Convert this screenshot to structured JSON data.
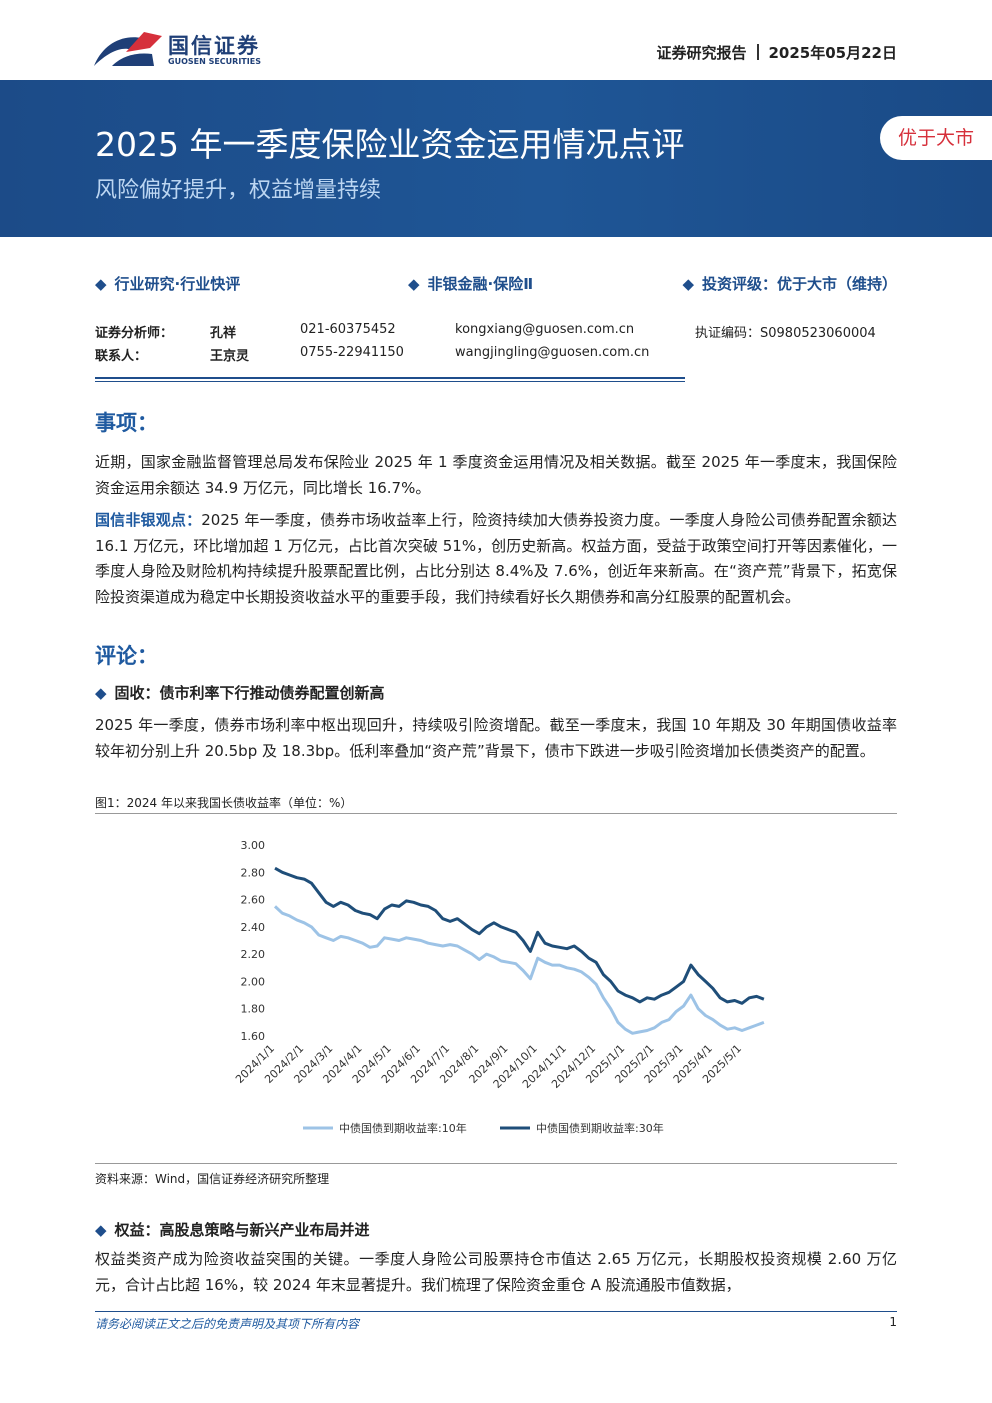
{
  "header": {
    "brand": "国信证券",
    "brand_en": "GUOSEN SECURITIES",
    "doc_type": "证券研究报告",
    "date": "2025年05月22日"
  },
  "banner": {
    "title": "2025 年一季度保险业资金运用情况点评",
    "subtitle": "风险偏好提升，权益增量持续",
    "rating": "优于大市"
  },
  "tags": [
    "行业研究·行业快评",
    "非银金融·保险Ⅱ",
    "投资评级：优于大市（维持）"
  ],
  "contacts": [
    {
      "role": "证券分析师：",
      "name": "孔祥",
      "phone": "021-60375452",
      "email": "kongxiang@guosen.com.cn",
      "cert": "执证编码：S0980523060004"
    },
    {
      "role": "联系人：",
      "name": "王京灵",
      "phone": "0755-22941150",
      "email": "wangjingling@guosen.com.cn"
    }
  ],
  "sections": [
    {
      "heading": "事项：",
      "lead": "国信非银观点：",
      "paragraphs": [
        "近期，国家金融监督管理总局发布保险业 2025 年 1 季度资金运用情况及相关数据。截至 2025 年一季度末，我国保险资金运用余额达 34.9 万亿元，同比增长 16.7%。",
        "2025 年一季度，债券市场收益率上行，险资持续加大债券投资力度。一季度人身险公司债券配置余额达 16.1 万亿元，环比增加超 1 万亿元，占比首次突破 51%，创历史新高。权益方面，受益于政策空间打开等因素催化，一季度人身险及财险机构持续提升股票配置比例，占比分别达 8.4%及 7.6%，创近年来新高。在“资产荒”背景下，拓宽保险投资渠道成为稳定中长期投资收益水平的重要手段，我们持续看好长久期债券和高分红股票的配置机会。"
      ]
    },
    {
      "heading": "评论：",
      "subheadings": [
        "固收：债市利率下行推动债券配置创新高",
        "权益：高股息策略与新兴产业布局并进"
      ],
      "paragraphs": [
        "2025 年一季度，债券市场利率中枢出现回升，持续吸引险资增配。截至一季度末，我国 10 年期及 30 年期国债收益率较年初分别上升 20.5bp 及 18.3bp。低利率叠加“资产荒”背景下，债市下跌进一步吸引险资增加长债类资产的配置。",
        "权益类资产成为险资收益突围的关键。一季度人身险公司股票持仓市值达 2.65 万亿元，长期股权投资规模 2.60 万亿元，合计占比超 16%，较 2024 年末显著提升。我们梳理了保险资金重仓 A 股流通股市值数据，"
      ]
    }
  ],
  "chart_data": {
    "type": "line",
    "title": "图1：2024 年以来我国长债收益率（单位：%）",
    "source": "资料来源：Wind，国信证券经济研究所整理",
    "categories": [
      "2024/1/1",
      null,
      null,
      null,
      "2024/2/1",
      null,
      null,
      null,
      "2024/3/1",
      null,
      null,
      null,
      "2024/4/1",
      null,
      null,
      null,
      "2024/5/1",
      null,
      null,
      null,
      "2024/6/1",
      null,
      null,
      null,
      "2024/7/1",
      null,
      null,
      null,
      "2024/8/1",
      null,
      null,
      null,
      "2024/9/1",
      null,
      null,
      null,
      "2024/10/1",
      null,
      null,
      null,
      "2024/11/1",
      null,
      null,
      null,
      "2024/12/1",
      null,
      null,
      null,
      "2025/1/1",
      null,
      null,
      null,
      "2025/2/1",
      null,
      null,
      null,
      "2025/3/1",
      null,
      null,
      null,
      "2025/4/1",
      null,
      null,
      null,
      "2025/5/1",
      null,
      null,
      null
    ],
    "series": [
      {
        "name": "中债国债到期收益率:10年",
        "color": "#9dc3e6",
        "values": [
          2.55,
          2.5,
          2.48,
          2.45,
          2.43,
          2.4,
          2.34,
          2.32,
          2.3,
          2.33,
          2.32,
          2.3,
          2.28,
          2.25,
          2.26,
          2.32,
          2.31,
          2.3,
          2.32,
          2.31,
          2.3,
          2.28,
          2.27,
          2.26,
          2.27,
          2.26,
          2.23,
          2.2,
          2.16,
          2.2,
          2.18,
          2.15,
          2.14,
          2.13,
          2.08,
          2.02,
          2.17,
          2.14,
          2.12,
          2.12,
          2.1,
          2.09,
          2.07,
          2.03,
          1.98,
          1.88,
          1.8,
          1.7,
          1.65,
          1.62,
          1.63,
          1.64,
          1.66,
          1.7,
          1.72,
          1.78,
          1.82,
          1.9,
          1.8,
          1.75,
          1.72,
          1.68,
          1.65,
          1.66,
          1.64,
          1.66,
          1.68,
          1.7
        ]
      },
      {
        "name": "中债国债到期收益率:30年",
        "color": "#1f4e79",
        "values": [
          2.83,
          2.8,
          2.78,
          2.76,
          2.75,
          2.72,
          2.65,
          2.58,
          2.55,
          2.58,
          2.56,
          2.52,
          2.5,
          2.49,
          2.46,
          2.53,
          2.56,
          2.55,
          2.59,
          2.58,
          2.56,
          2.55,
          2.52,
          2.46,
          2.44,
          2.46,
          2.42,
          2.38,
          2.35,
          2.4,
          2.43,
          2.4,
          2.38,
          2.36,
          2.3,
          2.22,
          2.36,
          2.28,
          2.26,
          2.25,
          2.24,
          2.26,
          2.22,
          2.17,
          2.14,
          2.05,
          2.0,
          1.93,
          1.9,
          1.88,
          1.85,
          1.88,
          1.87,
          1.9,
          1.92,
          1.96,
          2.0,
          2.12,
          2.05,
          2.0,
          1.95,
          1.88,
          1.85,
          1.86,
          1.84,
          1.88,
          1.89,
          1.87
        ]
      }
    ],
    "ylim": [
      1.6,
      3.0
    ],
    "yticks": [
      {
        "value": 1.6,
        "label": "1.60"
      },
      {
        "value": 1.8,
        "label": "1.80"
      },
      {
        "value": 2.0,
        "label": "2.00"
      },
      {
        "value": 2.2,
        "label": "2.20"
      },
      {
        "value": 2.4,
        "label": "2.40"
      },
      {
        "value": 2.6,
        "label": "2.60"
      },
      {
        "value": 2.8,
        "label": "2.80"
      },
      {
        "value": 3.0,
        "label": "3.00"
      }
    ],
    "legend": "bottom"
  },
  "footer": {
    "note": "请务必阅读正文之后的免责声明及其项下所有内容",
    "page": "1"
  }
}
